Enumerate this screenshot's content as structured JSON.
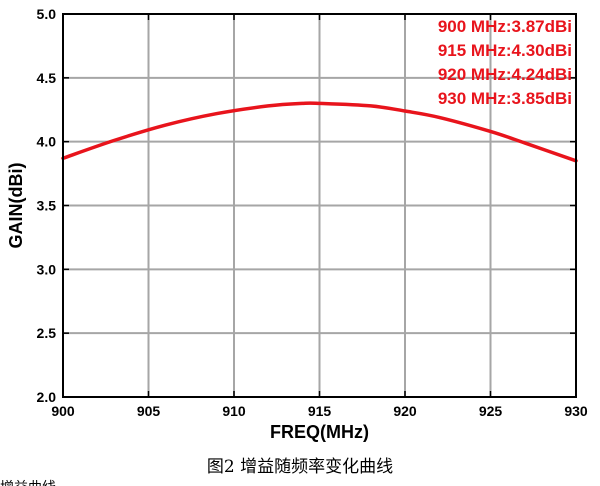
{
  "chart_data": {
    "type": "line",
    "title": "",
    "xlabel": "FREQ(MHz)",
    "ylabel": "GAIN(dBi)",
    "xlim": [
      900,
      930
    ],
    "ylim": [
      2.0,
      5.0
    ],
    "x_ticks": [
      "900",
      "905",
      "910",
      "915",
      "920",
      "925",
      "930"
    ],
    "y_ticks": [
      "2.0",
      "2.5",
      "3.0",
      "3.5",
      "4.0",
      "4.5",
      "5.0"
    ],
    "grid": true,
    "series": [
      {
        "color": "#e8141c",
        "x": [
          900,
          903,
          906,
          909,
          912,
          914,
          915,
          918,
          920,
          922,
          925,
          927,
          930
        ],
        "y": [
          3.87,
          4.01,
          4.13,
          4.22,
          4.28,
          4.3,
          4.3,
          4.28,
          4.24,
          4.19,
          4.08,
          3.99,
          3.85
        ]
      }
    ],
    "annotations": [
      "900 MHz:3.87dBi",
      "915 MHz:4.30dBi",
      "920 MHz:4.24dBi",
      "930 MHz:3.85dBi"
    ],
    "annotation_color": "#e8141c",
    "legend_placement": "top-right"
  },
  "caption": "图2 增益随频率变化曲线",
  "footer_fragment": "增益曲线"
}
